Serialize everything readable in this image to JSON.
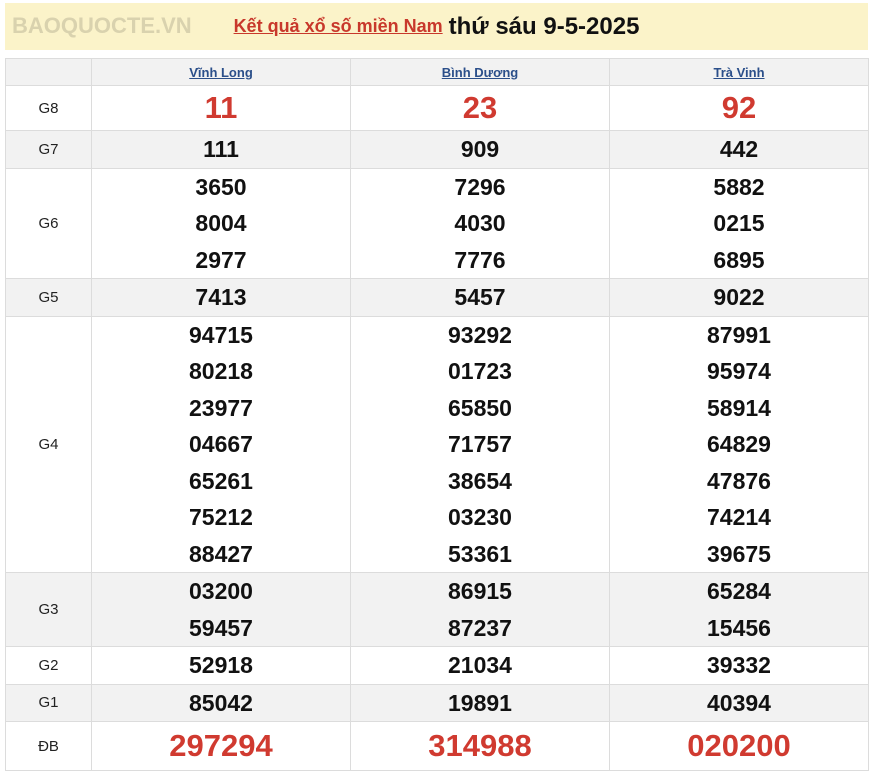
{
  "header": {
    "link": "Kết quả xổ số miền Nam",
    "date": "thứ sáu 9-5-2025"
  },
  "provinces": [
    "Vĩnh Long",
    "Bình Dương",
    "Trà Vinh"
  ],
  "rows": [
    {
      "label": "G8",
      "style": "big",
      "alt": false,
      "values": [
        [
          "11"
        ],
        [
          "23"
        ],
        [
          "92"
        ]
      ]
    },
    {
      "label": "G7",
      "style": "num",
      "alt": true,
      "values": [
        [
          "111"
        ],
        [
          "909"
        ],
        [
          "442"
        ]
      ]
    },
    {
      "label": "G6",
      "style": "num",
      "alt": false,
      "values": [
        [
          "3650",
          "8004",
          "2977"
        ],
        [
          "7296",
          "4030",
          "7776"
        ],
        [
          "5882",
          "0215",
          "6895"
        ]
      ]
    },
    {
      "label": "G5",
      "style": "num",
      "alt": true,
      "values": [
        [
          "7413"
        ],
        [
          "5457"
        ],
        [
          "9022"
        ]
      ]
    },
    {
      "label": "G4",
      "style": "num",
      "alt": false,
      "values": [
        [
          "94715",
          "80218",
          "23977",
          "04667",
          "65261",
          "75212",
          "88427"
        ],
        [
          "93292",
          "01723",
          "65850",
          "71757",
          "38654",
          "03230",
          "53361"
        ],
        [
          "87991",
          "95974",
          "58914",
          "64829",
          "47876",
          "74214",
          "39675"
        ]
      ]
    },
    {
      "label": "G3",
      "style": "num",
      "alt": true,
      "values": [
        [
          "03200",
          "59457"
        ],
        [
          "86915",
          "87237"
        ],
        [
          "65284",
          "15456"
        ]
      ]
    },
    {
      "label": "G2",
      "style": "num",
      "alt": false,
      "values": [
        [
          "52918"
        ],
        [
          "21034"
        ],
        [
          "39332"
        ]
      ]
    },
    {
      "label": "G1",
      "style": "num",
      "alt": true,
      "values": [
        [
          "85042"
        ],
        [
          "19891"
        ],
        [
          "40394"
        ]
      ]
    },
    {
      "label": "ĐB",
      "style": "big",
      "alt": false,
      "values": [
        [
          "297294"
        ],
        [
          "314988"
        ],
        [
          "020200"
        ]
      ]
    }
  ],
  "watermark": "BAOQUOCTE.VN"
}
